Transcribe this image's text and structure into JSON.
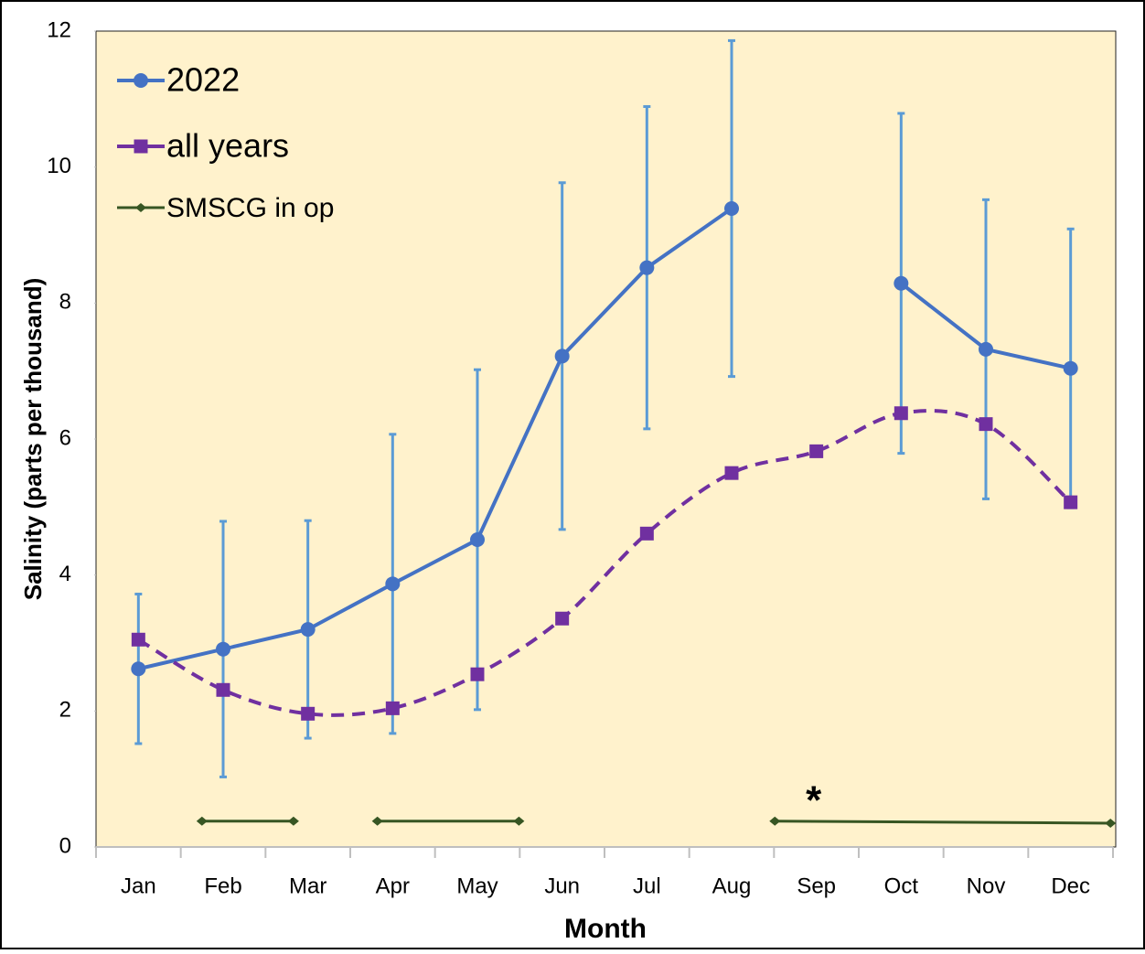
{
  "chart_data": {
    "type": "line",
    "x_label": "Month",
    "y_label": "Salinity (parts per thousand)",
    "categories": [
      "Jan",
      "Feb",
      "Mar",
      "Apr",
      "May",
      "Jun",
      "Jul",
      "Aug",
      "Sep",
      "Oct",
      "Nov",
      "Dec"
    ],
    "series": [
      {
        "name": "2022",
        "color": "#4472c4",
        "error_color": "#5b9bd5",
        "marker": "circle",
        "dash": false,
        "smooth": false,
        "values": [
          2.62,
          2.91,
          3.2,
          3.87,
          4.52,
          7.22,
          8.52,
          9.39,
          null,
          8.29,
          7.32,
          7.04
        ],
        "errors": [
          1.1,
          1.88,
          1.6,
          2.2,
          2.5,
          2.55,
          2.37,
          2.47,
          null,
          2.5,
          2.2,
          2.05
        ]
      },
      {
        "name": "all years",
        "color": "#7030a0",
        "marker": "square",
        "dash": true,
        "smooth": true,
        "values": [
          3.05,
          2.31,
          1.96,
          2.04,
          2.54,
          3.36,
          4.61,
          5.5,
          5.82,
          6.38,
          6.22,
          5.07
        ]
      },
      {
        "name": "SMSCG in op",
        "color": "#375623",
        "marker": "diamond",
        "dash": false,
        "smooth": false,
        "x": [
          0.75,
          1.83,
          null,
          2.82,
          4.49,
          null,
          7.51,
          11.47
        ],
        "values": [
          0.38,
          0.38,
          null,
          0.38,
          0.38,
          null,
          0.38,
          0.35
        ]
      }
    ],
    "annotation": "*",
    "ylim": [
      0,
      12
    ],
    "yticks": [
      0,
      2,
      4,
      6,
      8,
      10,
      12
    ],
    "grid": false,
    "legend": "upper left",
    "background": "#fff2cc"
  }
}
